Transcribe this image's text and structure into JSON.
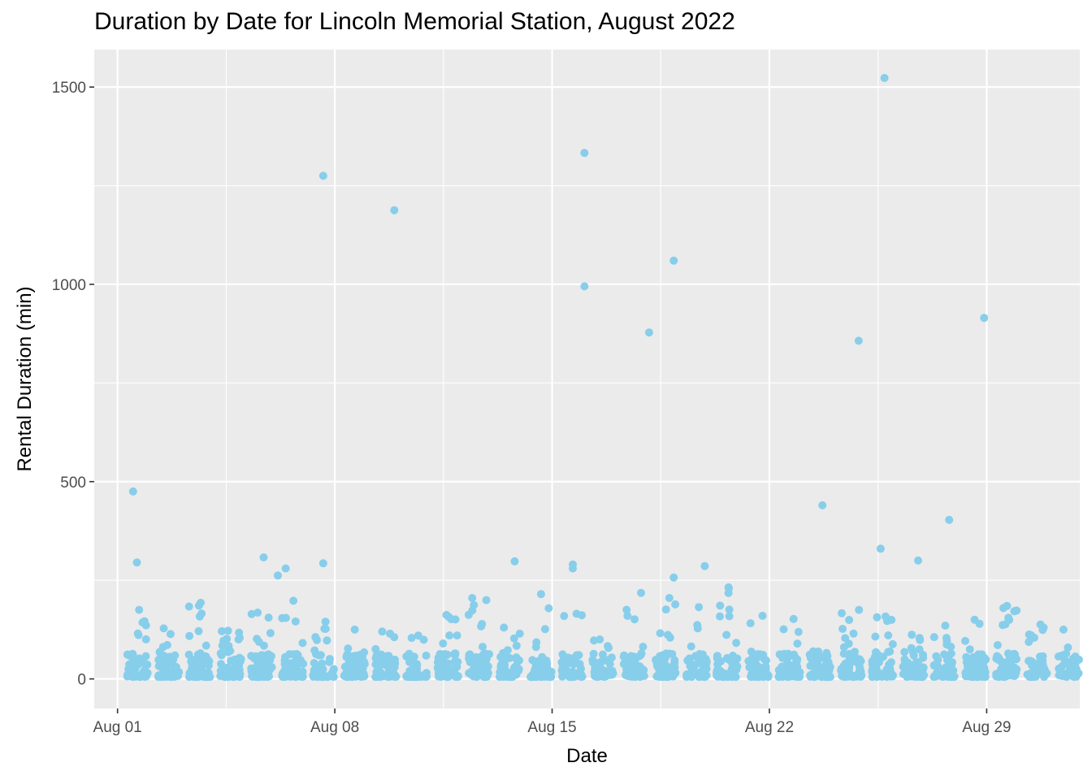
{
  "chart_data": {
    "type": "scatter",
    "title": "Duration by Date for Lincoln Memorial Station, August 2022",
    "xlabel": "Date",
    "ylabel": "Rental Duration (min)",
    "x_axis": {
      "type": "date",
      "range": [
        "2022-07-31T06:00",
        "2022-09-01T00:00"
      ],
      "ticks": [
        "2022-08-01",
        "2022-08-08",
        "2022-08-15",
        "2022-08-22",
        "2022-08-29"
      ],
      "tick_labels": [
        "Aug 01",
        "Aug 08",
        "Aug 15",
        "Aug 22",
        "Aug 29"
      ]
    },
    "y_axis": {
      "range": [
        -75,
        1595
      ],
      "ticks": [
        0,
        500,
        1000,
        1500
      ],
      "tick_labels": [
        "0",
        "500",
        "1000",
        "1500"
      ]
    },
    "grid": true,
    "legend": "none",
    "colors": {
      "panel_background": "#ebebeb",
      "grid_line": "#ffffff",
      "point": "#87ceeb",
      "tick_label": "#4d4d4d",
      "axis_title": "#000000"
    },
    "outliers": [
      {
        "x": "2022-08-01T12:00",
        "y": 475
      },
      {
        "x": "2022-08-01T15:00",
        "y": 295
      },
      {
        "x": "2022-08-05T17:00",
        "y": 308
      },
      {
        "x": "2022-08-06T04:00",
        "y": 262
      },
      {
        "x": "2022-08-06T10:00",
        "y": 280
      },
      {
        "x": "2022-08-07T15:00",
        "y": 1275
      },
      {
        "x": "2022-08-07T15:00",
        "y": 293
      },
      {
        "x": "2022-08-09T22:00",
        "y": 1188
      },
      {
        "x": "2022-08-13T19:00",
        "y": 298
      },
      {
        "x": "2022-08-15T16:00",
        "y": 290
      },
      {
        "x": "2022-08-15T16:00",
        "y": 280
      },
      {
        "x": "2022-08-16T01:00",
        "y": 1333
      },
      {
        "x": "2022-08-16T01:00",
        "y": 995
      },
      {
        "x": "2022-08-18T03:00",
        "y": 878
      },
      {
        "x": "2022-08-18T22:00",
        "y": 1060
      },
      {
        "x": "2022-08-18T22:00",
        "y": 257
      },
      {
        "x": "2022-08-19T22:00",
        "y": 286
      },
      {
        "x": "2022-08-23T17:00",
        "y": 440
      },
      {
        "x": "2022-08-24T21:00",
        "y": 857
      },
      {
        "x": "2022-08-25T14:00",
        "y": 330
      },
      {
        "x": "2022-08-25T17:00",
        "y": 1523
      },
      {
        "x": "2022-08-26T19:00",
        "y": 300
      },
      {
        "x": "2022-08-27T19:00",
        "y": 403
      },
      {
        "x": "2022-08-28T22:00",
        "y": 915
      }
    ],
    "daily_clusters": [
      {
        "date": "2022-08-01",
        "y_max": 175
      },
      {
        "date": "2022-08-02",
        "y_max": 128
      },
      {
        "date": "2022-08-03",
        "y_max": 193
      },
      {
        "date": "2022-08-04",
        "y_max": 122
      },
      {
        "date": "2022-08-05",
        "y_max": 168
      },
      {
        "date": "2022-08-06",
        "y_max": 198
      },
      {
        "date": "2022-08-07",
        "y_max": 145
      },
      {
        "date": "2022-08-08",
        "y_max": 125
      },
      {
        "date": "2022-08-09",
        "y_max": 120
      },
      {
        "date": "2022-08-10",
        "y_max": 110
      },
      {
        "date": "2022-08-11",
        "y_max": 162
      },
      {
        "date": "2022-08-12",
        "y_max": 205
      },
      {
        "date": "2022-08-13",
        "y_max": 130
      },
      {
        "date": "2022-08-14",
        "y_max": 215
      },
      {
        "date": "2022-08-15",
        "y_max": 165
      },
      {
        "date": "2022-08-16",
        "y_max": 100
      },
      {
        "date": "2022-08-17",
        "y_max": 218
      },
      {
        "date": "2022-08-18",
        "y_max": 205
      },
      {
        "date": "2022-08-19",
        "y_max": 182
      },
      {
        "date": "2022-08-20",
        "y_max": 232
      },
      {
        "date": "2022-08-21",
        "y_max": 160
      },
      {
        "date": "2022-08-22",
        "y_max": 152
      },
      {
        "date": "2022-08-23",
        "y_max": 70
      },
      {
        "date": "2022-08-24",
        "y_max": 175
      },
      {
        "date": "2022-08-25",
        "y_max": 158
      },
      {
        "date": "2022-08-26",
        "y_max": 112
      },
      {
        "date": "2022-08-27",
        "y_max": 135
      },
      {
        "date": "2022-08-28",
        "y_max": 150
      },
      {
        "date": "2022-08-29",
        "y_max": 185
      },
      {
        "date": "2022-08-30",
        "y_max": 138
      },
      {
        "date": "2022-08-31",
        "y_max": 125
      }
    ]
  }
}
